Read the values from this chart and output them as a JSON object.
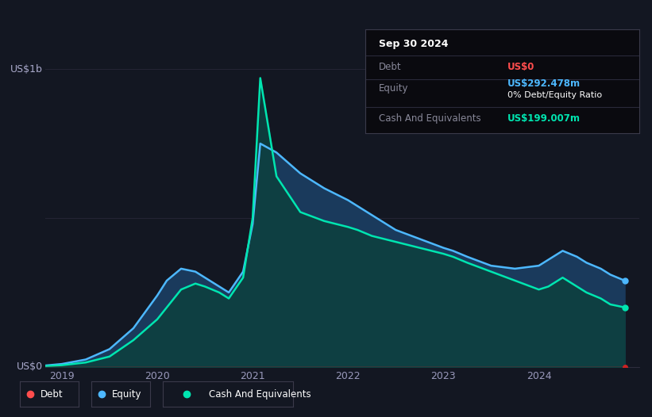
{
  "background_color": "#131722",
  "plot_bg_color": "#131722",
  "title_box": {
    "date": "Sep 30 2024",
    "debt_label": "Debt",
    "debt_value": "US$0",
    "equity_label": "Equity",
    "equity_value": "US$292.478m",
    "ratio": "0% Debt/Equity Ratio",
    "cash_label": "Cash And Equivalents",
    "cash_value": "US$199.007m"
  },
  "ylabel": "US$1b",
  "y0label": "US$0",
  "x_ticks": [
    "2019",
    "2020",
    "2021",
    "2022",
    "2023",
    "2024"
  ],
  "legend": [
    {
      "label": "Debt",
      "color": "#ff4d4d"
    },
    {
      "label": "Equity",
      "color": "#4db8ff"
    },
    {
      "label": "Cash And Equivalents",
      "color": "#00e5b0"
    }
  ],
  "debt_color": "#ff4d4d",
  "equity_color": "#4db8ff",
  "cash_color": "#00e5b0",
  "equity_fill_color": "#1a3a5c",
  "cash_fill_color": "#0d4040",
  "grid_color": "#252535",
  "debt_line_color": "#cc2222",
  "time_points": [
    2018.83,
    2019.0,
    2019.25,
    2019.5,
    2019.75,
    2020.0,
    2020.1,
    2020.25,
    2020.4,
    2020.5,
    2020.65,
    2020.75,
    2020.9,
    2021.0,
    2021.08,
    2021.25,
    2021.5,
    2021.75,
    2022.0,
    2022.1,
    2022.25,
    2022.5,
    2022.75,
    2023.0,
    2023.1,
    2023.25,
    2023.5,
    2023.75,
    2024.0,
    2024.1,
    2024.25,
    2024.4,
    2024.5,
    2024.65,
    2024.75,
    2024.9
  ],
  "equity_values": [
    0.005,
    0.01,
    0.025,
    0.06,
    0.13,
    0.24,
    0.29,
    0.33,
    0.32,
    0.3,
    0.27,
    0.25,
    0.32,
    0.48,
    0.75,
    0.72,
    0.65,
    0.6,
    0.56,
    0.54,
    0.51,
    0.46,
    0.43,
    0.4,
    0.39,
    0.37,
    0.34,
    0.33,
    0.34,
    0.36,
    0.39,
    0.37,
    0.35,
    0.33,
    0.31,
    0.29
  ],
  "cash_values": [
    0.003,
    0.006,
    0.015,
    0.035,
    0.09,
    0.16,
    0.2,
    0.26,
    0.28,
    0.27,
    0.25,
    0.23,
    0.3,
    0.5,
    0.97,
    0.64,
    0.52,
    0.49,
    0.47,
    0.46,
    0.44,
    0.42,
    0.4,
    0.38,
    0.37,
    0.35,
    0.32,
    0.29,
    0.26,
    0.27,
    0.3,
    0.27,
    0.25,
    0.23,
    0.21,
    0.2
  ],
  "debt_values": [
    0.0,
    0.0,
    0.0,
    0.0,
    0.0,
    0.0,
    0.0,
    0.0,
    0.0,
    0.0,
    0.0,
    0.0,
    0.0,
    0.0,
    0.0,
    0.0,
    0.0,
    0.0,
    0.0,
    0.0,
    0.0,
    0.0,
    0.0,
    0.0,
    0.0,
    0.0,
    0.0,
    0.0,
    0.0,
    0.0,
    0.0,
    0.0,
    0.0,
    0.0,
    0.0,
    0.0
  ],
  "ylim": [
    0,
    1.05
  ],
  "xlim": [
    2018.83,
    2025.05
  ]
}
